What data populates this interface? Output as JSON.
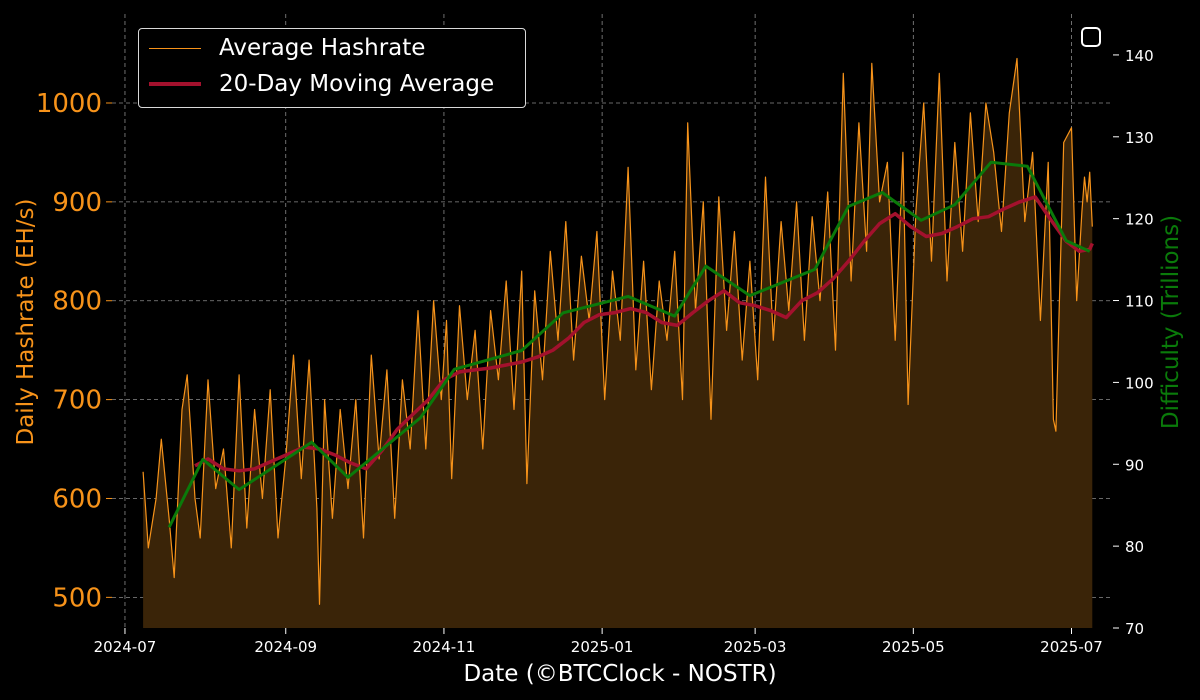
{
  "chart_data": {
    "type": "line",
    "xlabel": "Date (©BTCClock - NOSTR)",
    "ylabel_left": "Daily Hashrate (EH/s)",
    "ylabel_right": "Difficulty (Trillions)",
    "x_ticks": [
      "2024-07",
      "2024-09",
      "2024-11",
      "2025-01",
      "2025-03",
      "2025-05",
      "2025-07"
    ],
    "y_left_ticks": [
      500,
      600,
      700,
      800,
      900,
      1000
    ],
    "y_right_ticks": [
      70,
      80,
      90,
      100,
      110,
      120,
      130,
      140
    ],
    "x_range": [
      "2024-06-26",
      "2025-07-17"
    ],
    "y_left_range": [
      469,
      1090
    ],
    "y_right_range": [
      70,
      145
    ],
    "grid": true,
    "legend_position": "top-left",
    "background": "#000000",
    "series": [
      {
        "name": "Average Hashrate",
        "axis": "left",
        "color": "#f7931a",
        "fill": "#3a2408",
        "points": [
          [
            "2024-07-08",
            627
          ],
          [
            "2024-07-10",
            550
          ],
          [
            "2024-07-13",
            600
          ],
          [
            "2024-07-15",
            660
          ],
          [
            "2024-07-18",
            580
          ],
          [
            "2024-07-20",
            520
          ],
          [
            "2024-07-23",
            690
          ],
          [
            "2024-07-25",
            725
          ],
          [
            "2024-07-28",
            600
          ],
          [
            "2024-07-30",
            560
          ],
          [
            "2024-08-02",
            720
          ],
          [
            "2024-08-05",
            610
          ],
          [
            "2024-08-08",
            650
          ],
          [
            "2024-08-11",
            550
          ],
          [
            "2024-08-14",
            725
          ],
          [
            "2024-08-17",
            570
          ],
          [
            "2024-08-20",
            690
          ],
          [
            "2024-08-23",
            600
          ],
          [
            "2024-08-26",
            710
          ],
          [
            "2024-08-29",
            560
          ],
          [
            "2024-09-01",
            640
          ],
          [
            "2024-09-04",
            745
          ],
          [
            "2024-09-07",
            620
          ],
          [
            "2024-09-10",
            740
          ],
          [
            "2024-09-13",
            590
          ],
          [
            "2024-09-14",
            493
          ],
          [
            "2024-09-16",
            700
          ],
          [
            "2024-09-19",
            580
          ],
          [
            "2024-09-22",
            690
          ],
          [
            "2024-09-25",
            610
          ],
          [
            "2024-09-28",
            700
          ],
          [
            "2024-10-01",
            560
          ],
          [
            "2024-10-04",
            745
          ],
          [
            "2024-10-07",
            640
          ],
          [
            "2024-10-10",
            730
          ],
          [
            "2024-10-13",
            580
          ],
          [
            "2024-10-16",
            720
          ],
          [
            "2024-10-19",
            650
          ],
          [
            "2024-10-22",
            790
          ],
          [
            "2024-10-25",
            650
          ],
          [
            "2024-10-28",
            800
          ],
          [
            "2024-10-31",
            700
          ],
          [
            "2024-11-02",
            780
          ],
          [
            "2024-11-04",
            620
          ],
          [
            "2024-11-07",
            795
          ],
          [
            "2024-11-10",
            700
          ],
          [
            "2024-11-13",
            770
          ],
          [
            "2024-11-16",
            650
          ],
          [
            "2024-11-19",
            790
          ],
          [
            "2024-11-22",
            720
          ],
          [
            "2024-11-25",
            820
          ],
          [
            "2024-11-28",
            690
          ],
          [
            "2024-12-01",
            830
          ],
          [
            "2024-12-03",
            615
          ],
          [
            "2024-12-06",
            810
          ],
          [
            "2024-12-09",
            720
          ],
          [
            "2024-12-12",
            850
          ],
          [
            "2024-12-15",
            760
          ],
          [
            "2024-12-18",
            880
          ],
          [
            "2024-12-21",
            740
          ],
          [
            "2024-12-24",
            845
          ],
          [
            "2024-12-27",
            780
          ],
          [
            "2024-12-30",
            870
          ],
          [
            "2025-01-02",
            700
          ],
          [
            "2025-01-05",
            830
          ],
          [
            "2025-01-08",
            760
          ],
          [
            "2025-01-11",
            935
          ],
          [
            "2025-01-14",
            730
          ],
          [
            "2025-01-17",
            840
          ],
          [
            "2025-01-20",
            710
          ],
          [
            "2025-01-23",
            820
          ],
          [
            "2025-01-26",
            760
          ],
          [
            "2025-01-29",
            850
          ],
          [
            "2025-02-01",
            700
          ],
          [
            "2025-02-03",
            980
          ],
          [
            "2025-02-06",
            790
          ],
          [
            "2025-02-09",
            900
          ],
          [
            "2025-02-12",
            680
          ],
          [
            "2025-02-15",
            905
          ],
          [
            "2025-02-18",
            770
          ],
          [
            "2025-02-21",
            870
          ],
          [
            "2025-02-24",
            740
          ],
          [
            "2025-02-27",
            840
          ],
          [
            "2025-03-02",
            720
          ],
          [
            "2025-03-05",
            925
          ],
          [
            "2025-03-08",
            760
          ],
          [
            "2025-03-11",
            880
          ],
          [
            "2025-03-14",
            790
          ],
          [
            "2025-03-17",
            900
          ],
          [
            "2025-03-20",
            760
          ],
          [
            "2025-03-23",
            885
          ],
          [
            "2025-03-26",
            800
          ],
          [
            "2025-03-29",
            910
          ],
          [
            "2025-04-01",
            750
          ],
          [
            "2025-04-04",
            1030
          ],
          [
            "2025-04-07",
            820
          ],
          [
            "2025-04-10",
            980
          ],
          [
            "2025-04-13",
            850
          ],
          [
            "2025-04-15",
            1040
          ],
          [
            "2025-04-18",
            900
          ],
          [
            "2025-04-21",
            940
          ],
          [
            "2025-04-24",
            760
          ],
          [
            "2025-04-27",
            950
          ],
          [
            "2025-04-29",
            695
          ],
          [
            "2025-05-02",
            890
          ],
          [
            "2025-05-05",
            1000
          ],
          [
            "2025-05-08",
            840
          ],
          [
            "2025-05-11",
            1030
          ],
          [
            "2025-05-14",
            820
          ],
          [
            "2025-05-17",
            960
          ],
          [
            "2025-05-20",
            850
          ],
          [
            "2025-05-23",
            990
          ],
          [
            "2025-05-26",
            880
          ],
          [
            "2025-05-29",
            1000
          ],
          [
            "2025-06-01",
            950
          ],
          [
            "2025-06-04",
            870
          ],
          [
            "2025-06-07",
            990
          ],
          [
            "2025-06-10",
            1045
          ],
          [
            "2025-06-13",
            880
          ],
          [
            "2025-06-16",
            950
          ],
          [
            "2025-06-19",
            780
          ],
          [
            "2025-06-22",
            940
          ],
          [
            "2025-06-24",
            680
          ],
          [
            "2025-06-25",
            668
          ],
          [
            "2025-06-28",
            960
          ],
          [
            "2025-07-01",
            975
          ],
          [
            "2025-07-03",
            800
          ],
          [
            "2025-07-05",
            890
          ],
          [
            "2025-07-06",
            925
          ],
          [
            "2025-07-07",
            900
          ],
          [
            "2025-07-08",
            930
          ],
          [
            "2025-07-09",
            875
          ]
        ]
      },
      {
        "name": "20-Day Moving Average",
        "axis": "left",
        "color": "#a3112d",
        "points": [
          [
            "2024-07-28",
            633
          ],
          [
            "2024-08-02",
            640
          ],
          [
            "2024-08-08",
            630
          ],
          [
            "2024-08-14",
            628
          ],
          [
            "2024-08-20",
            630
          ],
          [
            "2024-08-26",
            637
          ],
          [
            "2024-09-02",
            645
          ],
          [
            "2024-09-08",
            652
          ],
          [
            "2024-09-14",
            650
          ],
          [
            "2024-09-20",
            644
          ],
          [
            "2024-09-26",
            636
          ],
          [
            "2024-10-02",
            630
          ],
          [
            "2024-10-08",
            648
          ],
          [
            "2024-10-14",
            670
          ],
          [
            "2024-10-20",
            685
          ],
          [
            "2024-10-26",
            700
          ],
          [
            "2024-11-01",
            720
          ],
          [
            "2024-11-07",
            728
          ],
          [
            "2024-11-13",
            730
          ],
          [
            "2024-11-19",
            732
          ],
          [
            "2024-11-25",
            735
          ],
          [
            "2024-12-01",
            738
          ],
          [
            "2024-12-07",
            743
          ],
          [
            "2024-12-13",
            750
          ],
          [
            "2024-12-19",
            762
          ],
          [
            "2024-12-25",
            778
          ],
          [
            "2024-12-31",
            786
          ],
          [
            "2025-01-06",
            788
          ],
          [
            "2025-01-12",
            792
          ],
          [
            "2025-01-18",
            788
          ],
          [
            "2025-01-24",
            778
          ],
          [
            "2025-01-30",
            775
          ],
          [
            "2025-02-05",
            788
          ],
          [
            "2025-02-11",
            800
          ],
          [
            "2025-02-17",
            810
          ],
          [
            "2025-02-23",
            798
          ],
          [
            "2025-03-01",
            795
          ],
          [
            "2025-03-07",
            790
          ],
          [
            "2025-03-13",
            783
          ],
          [
            "2025-03-19",
            800
          ],
          [
            "2025-03-25",
            808
          ],
          [
            "2025-03-31",
            822
          ],
          [
            "2025-04-06",
            840
          ],
          [
            "2025-04-12",
            860
          ],
          [
            "2025-04-18",
            878
          ],
          [
            "2025-04-24",
            888
          ],
          [
            "2025-04-30",
            875
          ],
          [
            "2025-05-06",
            865
          ],
          [
            "2025-05-12",
            868
          ],
          [
            "2025-05-18",
            875
          ],
          [
            "2025-05-24",
            883
          ],
          [
            "2025-05-30",
            885
          ],
          [
            "2025-06-05",
            893
          ],
          [
            "2025-06-11",
            900
          ],
          [
            "2025-06-17",
            905
          ],
          [
            "2025-06-23",
            882
          ],
          [
            "2025-06-29",
            860
          ],
          [
            "2025-07-04",
            850
          ],
          [
            "2025-07-08",
            852
          ],
          [
            "2025-07-09",
            858
          ]
        ]
      },
      {
        "name": "Difficulty",
        "axis": "right",
        "color": "#0a7a0a",
        "points": [
          [
            "2024-07-18",
            82.3
          ],
          [
            "2024-07-31",
            90.6
          ],
          [
            "2024-08-14",
            86.9
          ],
          [
            "2024-09-11",
            92.7
          ],
          [
            "2024-09-25",
            88.4
          ],
          [
            "2024-10-23",
            95.7
          ],
          [
            "2024-11-05",
            101.6
          ],
          [
            "2024-12-01",
            103.9
          ],
          [
            "2024-12-17",
            108.5
          ],
          [
            "2025-01-11",
            110.5
          ],
          [
            "2025-01-29",
            108.1
          ],
          [
            "2025-02-10",
            114.2
          ],
          [
            "2025-02-27",
            110.6
          ],
          [
            "2025-03-24",
            113.8
          ],
          [
            "2025-04-06",
            121.5
          ],
          [
            "2025-04-19",
            123.2
          ],
          [
            "2025-05-04",
            119.8
          ],
          [
            "2025-05-17",
            121.7
          ],
          [
            "2025-05-31",
            126.9
          ],
          [
            "2025-06-14",
            126.4
          ],
          [
            "2025-06-29",
            117.3
          ],
          [
            "2025-07-08",
            116.0
          ]
        ]
      }
    ]
  }
}
